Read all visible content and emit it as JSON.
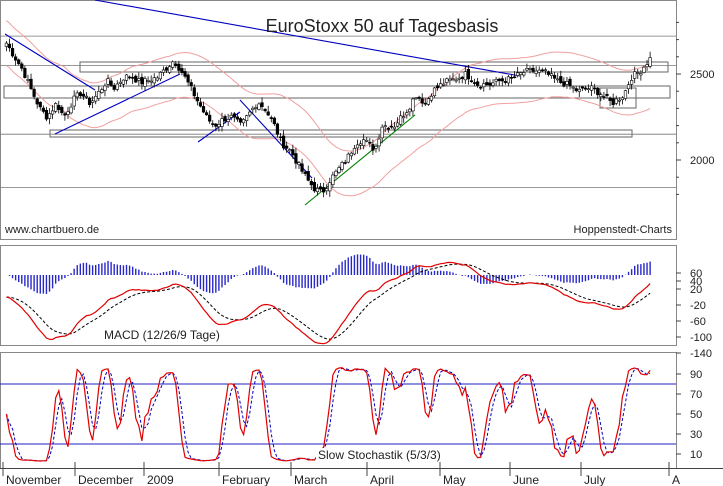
{
  "chart_data": [
    {
      "type": "candlestick",
      "title": "EuroStoxx 50 auf Tagesbasis",
      "watermark_left": "www.chartbuero.de",
      "watermark_right": "Hoppenstedt-Charts",
      "ylim": [
        1700,
        2900
      ],
      "yticks": [
        2000,
        2500
      ],
      "support_levels": [
        2720,
        2550,
        2150,
        1840
      ],
      "close_path": [
        [
          "2008-10-28",
          2680
        ],
        [
          "2008-10-31",
          2610
        ],
        [
          "2008-11-04",
          2520
        ],
        [
          "2008-11-07",
          2420
        ],
        [
          "2008-11-11",
          2300
        ],
        [
          "2008-11-14",
          2250
        ],
        [
          "2008-11-18",
          2330
        ],
        [
          "2008-11-21",
          2250
        ],
        [
          "2008-11-25",
          2350
        ],
        [
          "2008-11-28",
          2390
        ],
        [
          "2008-12-02",
          2330
        ],
        [
          "2008-12-05",
          2380
        ],
        [
          "2008-12-09",
          2460
        ],
        [
          "2008-12-12",
          2420
        ],
        [
          "2008-12-16",
          2480
        ],
        [
          "2008-12-19",
          2490
        ],
        [
          "2008-12-23",
          2450
        ],
        [
          "2008-12-30",
          2480
        ],
        [
          "2009-01-06",
          2580
        ],
        [
          "2009-01-09",
          2520
        ],
        [
          "2009-01-13",
          2420
        ],
        [
          "2009-01-16",
          2340
        ],
        [
          "2009-01-20",
          2240
        ],
        [
          "2009-01-23",
          2200
        ],
        [
          "2009-01-27",
          2240
        ],
        [
          "2009-01-30",
          2250
        ],
        [
          "2009-02-03",
          2200
        ],
        [
          "2009-02-06",
          2260
        ],
        [
          "2009-02-10",
          2340
        ],
        [
          "2009-02-13",
          2300
        ],
        [
          "2009-02-17",
          2200
        ],
        [
          "2009-02-20",
          2100
        ],
        [
          "2009-02-24",
          2050
        ],
        [
          "2009-02-27",
          1970
        ],
        [
          "2009-03-03",
          1880
        ],
        [
          "2009-03-06",
          1830
        ],
        [
          "2009-03-09",
          1810
        ],
        [
          "2009-03-12",
          1880
        ],
        [
          "2009-03-16",
          1950
        ],
        [
          "2009-03-19",
          2000
        ],
        [
          "2009-03-23",
          2100
        ],
        [
          "2009-03-26",
          2120
        ],
        [
          "2009-03-31",
          2060
        ],
        [
          "2009-04-03",
          2200
        ],
        [
          "2009-04-08",
          2200
        ],
        [
          "2009-04-14",
          2300
        ],
        [
          "2009-04-17",
          2380
        ],
        [
          "2009-04-21",
          2330
        ],
        [
          "2009-04-24",
          2400
        ],
        [
          "2009-04-29",
          2450
        ],
        [
          "2009-05-05",
          2480
        ],
        [
          "2009-05-08",
          2500
        ],
        [
          "2009-05-13",
          2440
        ],
        [
          "2009-05-18",
          2440
        ],
        [
          "2009-05-22",
          2460
        ],
        [
          "2009-05-27",
          2470
        ],
        [
          "2009-06-01",
          2510
        ],
        [
          "2009-06-05",
          2520
        ],
        [
          "2009-06-10",
          2510
        ],
        [
          "2009-06-15",
          2460
        ],
        [
          "2009-06-19",
          2440
        ],
        [
          "2009-06-24",
          2400
        ],
        [
          "2009-06-29",
          2420
        ],
        [
          "2009-07-03",
          2390
        ],
        [
          "2009-07-08",
          2330
        ],
        [
          "2009-07-13",
          2380
        ],
        [
          "2009-07-16",
          2480
        ],
        [
          "2009-07-20",
          2520
        ],
        [
          "2009-07-24",
          2590
        ]
      ]
    },
    {
      "type": "line",
      "title": "MACD (12/26/9 Tage)",
      "ylim": [
        -150,
        70
      ],
      "yticks": [
        60,
        40,
        20,
        -20,
        -60,
        -100,
        -140
      ]
    },
    {
      "type": "line",
      "title": "Slow Stochastik (5/3/3)",
      "ylim": [
        0,
        100
      ],
      "yticks": [
        90,
        70,
        50,
        30,
        10
      ],
      "reference_lines": [
        80,
        20
      ]
    }
  ],
  "x_axis": {
    "labels": [
      "November",
      "December",
      "2009",
      "February",
      "March",
      "April",
      "May",
      "June",
      "July",
      "A"
    ]
  },
  "colors": {
    "candle": "#000000",
    "downtrend": "#0000c0",
    "uptrend": "#008000",
    "bollinger": "#f0a0a0",
    "macd": "#e00000",
    "signal": "#000000",
    "histogram": "#2828c8",
    "stoch_k": "#e00000",
    "stoch_d": "#0000c0",
    "reference": "#2020c0"
  }
}
